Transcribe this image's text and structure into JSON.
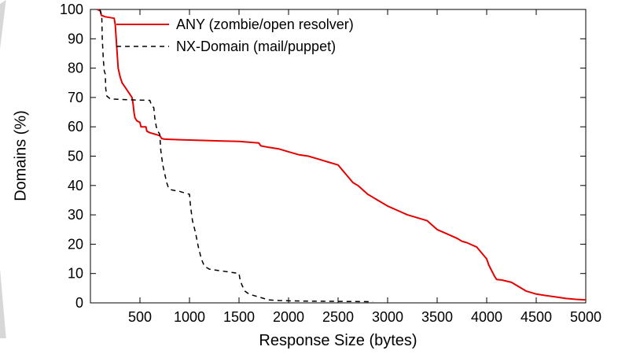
{
  "page": {
    "background_color": "#ffffff",
    "text_color": "#000000"
  },
  "chart_data": {
    "type": "line",
    "title": "",
    "xlabel": "Response Size (bytes)",
    "ylabel": "Domains (%)",
    "xlim": [
      0,
      5000
    ],
    "ylim": [
      0,
      100
    ],
    "xticks": [
      500,
      1000,
      1500,
      2000,
      2500,
      3000,
      3500,
      4000,
      4500,
      5000
    ],
    "yticks": [
      0,
      10,
      20,
      30,
      40,
      50,
      60,
      70,
      80,
      90,
      100
    ],
    "grid": false,
    "legend_position": "top-left-inside",
    "series": [
      {
        "name": "ANY (zombie/open resolver)",
        "color": "#e60000",
        "dash": "solid",
        "width": 2,
        "points": [
          [
            70,
            100
          ],
          [
            100,
            99.5
          ],
          [
            110,
            98
          ],
          [
            150,
            97.5
          ],
          [
            240,
            97
          ],
          [
            250,
            95
          ],
          [
            260,
            90
          ],
          [
            270,
            85
          ],
          [
            280,
            80
          ],
          [
            300,
            77
          ],
          [
            320,
            75
          ],
          [
            350,
            73.5
          ],
          [
            380,
            72
          ],
          [
            400,
            71
          ],
          [
            420,
            70
          ],
          [
            430,
            68
          ],
          [
            440,
            65
          ],
          [
            450,
            63
          ],
          [
            470,
            62
          ],
          [
            500,
            61.5
          ],
          [
            510,
            60
          ],
          [
            560,
            60
          ],
          [
            570,
            58.5
          ],
          [
            600,
            58
          ],
          [
            650,
            57.5
          ],
          [
            700,
            57
          ],
          [
            720,
            56
          ],
          [
            750,
            55.8
          ],
          [
            900,
            55.6
          ],
          [
            1100,
            55.4
          ],
          [
            1300,
            55.2
          ],
          [
            1500,
            55
          ],
          [
            1700,
            54.5
          ],
          [
            1720,
            53.5
          ],
          [
            1800,
            53
          ],
          [
            1900,
            52.5
          ],
          [
            2000,
            51.5
          ],
          [
            2100,
            50.5
          ],
          [
            2200,
            50
          ],
          [
            2300,
            49
          ],
          [
            2350,
            48.5
          ],
          [
            2400,
            48
          ],
          [
            2500,
            47
          ],
          [
            2550,
            45
          ],
          [
            2600,
            43
          ],
          [
            2650,
            41
          ],
          [
            2700,
            40
          ],
          [
            2750,
            38.5
          ],
          [
            2800,
            37
          ],
          [
            2850,
            36
          ],
          [
            2900,
            35
          ],
          [
            3000,
            33
          ],
          [
            3100,
            31.5
          ],
          [
            3200,
            30
          ],
          [
            3300,
            29
          ],
          [
            3400,
            28
          ],
          [
            3450,
            26.5
          ],
          [
            3500,
            25
          ],
          [
            3600,
            23.5
          ],
          [
            3700,
            22
          ],
          [
            3750,
            21
          ],
          [
            3800,
            20.5
          ],
          [
            3900,
            19
          ],
          [
            3950,
            17
          ],
          [
            4000,
            15
          ],
          [
            4020,
            13
          ],
          [
            4050,
            11
          ],
          [
            4080,
            9
          ],
          [
            4100,
            8
          ],
          [
            4150,
            7.8
          ],
          [
            4250,
            7
          ],
          [
            4300,
            6
          ],
          [
            4350,
            5
          ],
          [
            4400,
            4
          ],
          [
            4500,
            3
          ],
          [
            4600,
            2.5
          ],
          [
            4700,
            2
          ],
          [
            4800,
            1.5
          ],
          [
            4900,
            1.2
          ],
          [
            5000,
            1
          ]
        ]
      },
      {
        "name": "NX-Domain (mail/puppet)",
        "color": "#000000",
        "dash": "dashed",
        "width": 1.5,
        "points": [
          [
            95,
            100
          ],
          [
            105,
            99
          ],
          [
            115,
            97
          ],
          [
            120,
            90
          ],
          [
            130,
            83
          ],
          [
            140,
            79
          ],
          [
            150,
            78
          ],
          [
            155,
            73
          ],
          [
            165,
            70.5
          ],
          [
            200,
            69.5
          ],
          [
            400,
            69.2
          ],
          [
            600,
            69
          ],
          [
            615,
            67.5
          ],
          [
            640,
            66.5
          ],
          [
            650,
            63
          ],
          [
            665,
            60
          ],
          [
            680,
            58.5
          ],
          [
            700,
            57.5
          ],
          [
            710,
            52
          ],
          [
            730,
            47
          ],
          [
            750,
            44
          ],
          [
            770,
            41
          ],
          [
            790,
            39
          ],
          [
            820,
            38.5
          ],
          [
            900,
            38
          ],
          [
            1000,
            37
          ],
          [
            1010,
            33
          ],
          [
            1030,
            28
          ],
          [
            1060,
            24
          ],
          [
            1090,
            19
          ],
          [
            1120,
            15
          ],
          [
            1150,
            12.5
          ],
          [
            1200,
            11.5
          ],
          [
            1300,
            11
          ],
          [
            1400,
            10.5
          ],
          [
            1500,
            10
          ],
          [
            1510,
            8
          ],
          [
            1530,
            6
          ],
          [
            1560,
            4
          ],
          [
            1600,
            3
          ],
          [
            1650,
            2.5
          ],
          [
            1700,
            2
          ],
          [
            1750,
            1.5
          ],
          [
            1800,
            1
          ],
          [
            1900,
            0.8
          ],
          [
            2000,
            0.7
          ],
          [
            2200,
            0.6
          ],
          [
            2500,
            0.5
          ],
          [
            2850,
            0.4
          ]
        ]
      }
    ]
  }
}
